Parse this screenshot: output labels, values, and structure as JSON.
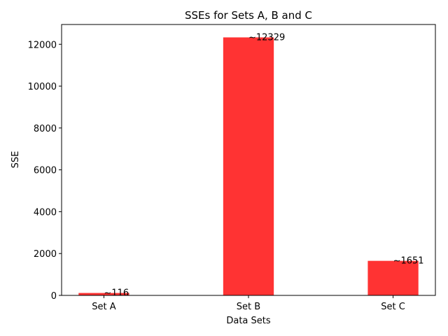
{
  "chart_data": {
    "type": "bar",
    "title": "SSEs for Sets A, B and C",
    "xlabel": "Data Sets",
    "ylabel": "SSE",
    "categories": [
      "Set A",
      "Set B",
      "Set C"
    ],
    "values": [
      116,
      12329,
      1651
    ],
    "data_labels": [
      "~116",
      "~12329",
      "~1651"
    ],
    "ylim": [
      0,
      12945
    ],
    "yticks": [
      0,
      2000,
      4000,
      6000,
      8000,
      10000,
      12000
    ],
    "bar_color": "#ff3333",
    "grid": false,
    "legend": "none"
  }
}
